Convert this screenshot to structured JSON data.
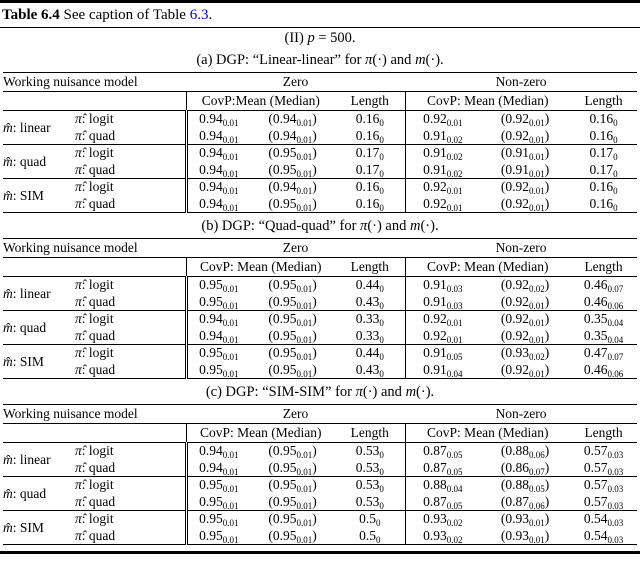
{
  "link_color": "#0000ee",
  "caption": {
    "bold": "Table 6.4",
    "text": "See caption of Table",
    "link": "6.3",
    "end": "."
  },
  "subtitle_segments": [
    [
      "(II) ",
      "r"
    ],
    [
      "p",
      "i"
    ],
    [
      " = 500.",
      "r"
    ]
  ],
  "header": [
    "Working nuisance model",
    "Zero",
    "Non-zero"
  ],
  "subtables": [
    {
      "caption_segments": [
        [
          "(a) DGP: “Linear-linear” for ",
          "r"
        ],
        [
          "π",
          "i"
        ],
        [
          "(·) and ",
          "r"
        ],
        [
          "m",
          "i"
        ],
        [
          "(·).",
          "r"
        ]
      ],
      "subheader": [
        "CovP:Mean (Median)",
        "Length",
        "CovP: Mean (Median)",
        "Length"
      ],
      "groups": [
        {
          "m_head": "m̂",
          "m_rest": ": linear",
          "rows": [
            {
              "pi_head": "π̂",
              "pi_rest": ": logit",
              "cells": [
                {
                  "v": "0.94",
                  "s": "0.01"
                },
                {
                  "v": "0.94",
                  "s": "0.01",
                  "p": true
                },
                {
                  "v": "0.16",
                  "s": "0"
                },
                {
                  "v": "0.92",
                  "s": "0.01"
                },
                {
                  "v": "0.92",
                  "s": "0.01",
                  "p": true
                },
                {
                  "v": "0.16",
                  "s": "0"
                }
              ]
            },
            {
              "pi_head": "π̂",
              "pi_rest": ": quad",
              "cells": [
                {
                  "v": "0.94",
                  "s": "0.01"
                },
                {
                  "v": "0.94",
                  "s": "0.01",
                  "p": true
                },
                {
                  "v": "0.16",
                  "s": "0"
                },
                {
                  "v": "0.91",
                  "s": "0.02"
                },
                {
                  "v": "0.92",
                  "s": "0.01",
                  "p": true
                },
                {
                  "v": "0.16",
                  "s": "0"
                }
              ]
            }
          ]
        },
        {
          "m_head": "m̂",
          "m_rest": ": quad",
          "rows": [
            {
              "pi_head": "π̂",
              "pi_rest": ": logit",
              "cells": [
                {
                  "v": "0.94",
                  "s": "0.01"
                },
                {
                  "v": "0.95",
                  "s": "0.01",
                  "p": true
                },
                {
                  "v": "0.17",
                  "s": "0"
                },
                {
                  "v": "0.91",
                  "s": "0.02"
                },
                {
                  "v": "0.91",
                  "s": "0.01",
                  "p": true
                },
                {
                  "v": "0.17",
                  "s": "0"
                }
              ]
            },
            {
              "pi_head": "π̂",
              "pi_rest": ": quad",
              "cells": [
                {
                  "v": "0.94",
                  "s": "0.01"
                },
                {
                  "v": "0.95",
                  "s": "0.01",
                  "p": true
                },
                {
                  "v": "0.17",
                  "s": "0"
                },
                {
                  "v": "0.91",
                  "s": "0.02"
                },
                {
                  "v": "0.91",
                  "s": "0.01",
                  "p": true
                },
                {
                  "v": "0.17",
                  "s": "0"
                }
              ]
            }
          ]
        },
        {
          "m_head": "m̂",
          "m_rest": ": SIM",
          "rows": [
            {
              "pi_head": "π̂",
              "pi_rest": ": logit",
              "cells": [
                {
                  "v": "0.94",
                  "s": "0.01"
                },
                {
                  "v": "0.94",
                  "s": "0.01",
                  "p": true
                },
                {
                  "v": "0.16",
                  "s": "0"
                },
                {
                  "v": "0.92",
                  "s": "0.01"
                },
                {
                  "v": "0.92",
                  "s": "0.01",
                  "p": true
                },
                {
                  "v": "0.16",
                  "s": "0"
                }
              ]
            },
            {
              "pi_head": "π̂",
              "pi_rest": ": quad",
              "cells": [
                {
                  "v": "0.94",
                  "s": "0.01"
                },
                {
                  "v": "0.95",
                  "s": "0.01",
                  "p": true
                },
                {
                  "v": "0.16",
                  "s": "0"
                },
                {
                  "v": "0.92",
                  "s": "0.01"
                },
                {
                  "v": "0.92",
                  "s": "0.01",
                  "p": true
                },
                {
                  "v": "0.16",
                  "s": "0"
                }
              ]
            }
          ]
        }
      ]
    },
    {
      "caption_segments": [
        [
          "(b) DGP: “Quad-quad” for ",
          "r"
        ],
        [
          "π",
          "i"
        ],
        [
          "(·) and ",
          "r"
        ],
        [
          "m",
          "i"
        ],
        [
          "(·).",
          "r"
        ]
      ],
      "subheader": [
        "CovP: Mean (Median)",
        "Length",
        "CovP: Mean (Median)",
        "Length"
      ],
      "groups": [
        {
          "m_head": "m̂",
          "m_rest": ": linear",
          "rows": [
            {
              "pi_head": "π̂",
              "pi_rest": ": logit",
              "cells": [
                {
                  "v": "0.95",
                  "s": "0.01"
                },
                {
                  "v": "0.95",
                  "s": "0.01",
                  "p": true
                },
                {
                  "v": "0.44",
                  "s": "0"
                },
                {
                  "v": "0.91",
                  "s": "0.03"
                },
                {
                  "v": "0.92",
                  "s": "0.02",
                  "p": true
                },
                {
                  "v": "0.46",
                  "s": "0.07"
                }
              ]
            },
            {
              "pi_head": "π̂",
              "pi_rest": ": quad",
              "cells": [
                {
                  "v": "0.95",
                  "s": "0.01"
                },
                {
                  "v": "0.95",
                  "s": "0.01",
                  "p": true
                },
                {
                  "v": "0.43",
                  "s": "0"
                },
                {
                  "v": "0.91",
                  "s": "0.03"
                },
                {
                  "v": "0.92",
                  "s": "0.01",
                  "p": true
                },
                {
                  "v": "0.46",
                  "s": "0.06"
                }
              ]
            }
          ]
        },
        {
          "m_head": "m̂",
          "m_rest": ": quad",
          "rows": [
            {
              "pi_head": "π̂",
              "pi_rest": ": logit",
              "cells": [
                {
                  "v": "0.94",
                  "s": "0.01"
                },
                {
                  "v": "0.95",
                  "s": "0.01",
                  "p": true
                },
                {
                  "v": "0.33",
                  "s": "0"
                },
                {
                  "v": "0.92",
                  "s": "0.01"
                },
                {
                  "v": "0.92",
                  "s": "0.01",
                  "p": true
                },
                {
                  "v": "0.35",
                  "s": "0.04"
                }
              ]
            },
            {
              "pi_head": "π̂",
              "pi_rest": ": quad",
              "cells": [
                {
                  "v": "0.94",
                  "s": "0.01"
                },
                {
                  "v": "0.95",
                  "s": "0.01",
                  "p": true
                },
                {
                  "v": "0.33",
                  "s": "0"
                },
                {
                  "v": "0.92",
                  "s": "0.01"
                },
                {
                  "v": "0.92",
                  "s": "0.01",
                  "p": true
                },
                {
                  "v": "0.35",
                  "s": "0.04"
                }
              ]
            }
          ]
        },
        {
          "m_head": "m̂",
          "m_rest": ": SIM",
          "rows": [
            {
              "pi_head": "π̂",
              "pi_rest": ": logit",
              "cells": [
                {
                  "v": "0.95",
                  "s": "0.01"
                },
                {
                  "v": "0.95",
                  "s": "0.01",
                  "p": true
                },
                {
                  "v": "0.44",
                  "s": "0"
                },
                {
                  "v": "0.91",
                  "s": "0.05"
                },
                {
                  "v": "0.93",
                  "s": "0.02",
                  "p": true
                },
                {
                  "v": "0.47",
                  "s": "0.07"
                }
              ]
            },
            {
              "pi_head": "π̂",
              "pi_rest": ": quad",
              "cells": [
                {
                  "v": "0.95",
                  "s": "0.01"
                },
                {
                  "v": "0.95",
                  "s": "0.01",
                  "p": true
                },
                {
                  "v": "0.43",
                  "s": "0"
                },
                {
                  "v": "0.91",
                  "s": "0.04"
                },
                {
                  "v": "0.92",
                  "s": "0.01",
                  "p": true
                },
                {
                  "v": "0.46",
                  "s": "0.06"
                }
              ]
            }
          ]
        }
      ]
    },
    {
      "caption_segments": [
        [
          "(c) DGP: “SIM-SIM” for ",
          "r"
        ],
        [
          "π",
          "i"
        ],
        [
          "(·) and ",
          "r"
        ],
        [
          "m",
          "i"
        ],
        [
          "(·).",
          "r"
        ]
      ],
      "subheader": [
        "CovP: Mean (Median)",
        "Length",
        "CovP: Mean (Median)",
        "Length"
      ],
      "groups": [
        {
          "m_head": "m̂",
          "m_rest": ": linear",
          "rows": [
            {
              "pi_head": "π̂",
              "pi_rest": ": logit",
              "cells": [
                {
                  "v": "0.94",
                  "s": "0.01"
                },
                {
                  "v": "0.95",
                  "s": "0.01",
                  "p": true
                },
                {
                  "v": "0.53",
                  "s": "0"
                },
                {
                  "v": "0.87",
                  "s": "0.05"
                },
                {
                  "v": "0.88",
                  "s": "0.06",
                  "p": true
                },
                {
                  "v": "0.57",
                  "s": "0.03"
                }
              ]
            },
            {
              "pi_head": "π̂",
              "pi_rest": ": quad",
              "cells": [
                {
                  "v": "0.94",
                  "s": "0.01"
                },
                {
                  "v": "0.95",
                  "s": "0.01",
                  "p": true
                },
                {
                  "v": "0.53",
                  "s": "0"
                },
                {
                  "v": "0.87",
                  "s": "0.05"
                },
                {
                  "v": "0.86",
                  "s": "0.07",
                  "p": true
                },
                {
                  "v": "0.57",
                  "s": "0.03"
                }
              ]
            }
          ]
        },
        {
          "m_head": "m̂",
          "m_rest": ": quad",
          "rows": [
            {
              "pi_head": "π̂",
              "pi_rest": ": logit",
              "cells": [
                {
                  "v": "0.95",
                  "s": "0.01"
                },
                {
                  "v": "0.95",
                  "s": "0.01",
                  "p": true
                },
                {
                  "v": "0.53",
                  "s": "0"
                },
                {
                  "v": "0.88",
                  "s": "0.04"
                },
                {
                  "v": "0.88",
                  "s": "0.05",
                  "p": true
                },
                {
                  "v": "0.57",
                  "s": "0.03"
                }
              ]
            },
            {
              "pi_head": "π̂",
              "pi_rest": ": quad",
              "cells": [
                {
                  "v": "0.95",
                  "s": "0.01"
                },
                {
                  "v": "0.95",
                  "s": "0.01",
                  "p": true
                },
                {
                  "v": "0.53",
                  "s": "0"
                },
                {
                  "v": "0.87",
                  "s": "0.05"
                },
                {
                  "v": "0.87",
                  "s": "0.06",
                  "p": true
                },
                {
                  "v": "0.57",
                  "s": "0.03"
                }
              ]
            }
          ]
        },
        {
          "m_head": "m̂",
          "m_rest": ": SIM",
          "rows": [
            {
              "pi_head": "π̂",
              "pi_rest": ": logit",
              "cells": [
                {
                  "v": "0.95",
                  "s": "0.01"
                },
                {
                  "v": "0.95",
                  "s": "0.01",
                  "p": true
                },
                {
                  "v": "0.5",
                  "s": "0"
                },
                {
                  "v": "0.93",
                  "s": "0.02"
                },
                {
                  "v": "0.93",
                  "s": "0.01",
                  "p": true
                },
                {
                  "v": "0.54",
                  "s": "0.03"
                }
              ]
            },
            {
              "pi_head": "π̂",
              "pi_rest": ": quad",
              "cells": [
                {
                  "v": "0.95",
                  "s": "0.01"
                },
                {
                  "v": "0.95",
                  "s": "0.01",
                  "p": true
                },
                {
                  "v": "0.5",
                  "s": "0"
                },
                {
                  "v": "0.93",
                  "s": "0.02"
                },
                {
                  "v": "0.93",
                  "s": "0.01",
                  "p": true
                },
                {
                  "v": "0.54",
                  "s": "0.03"
                }
              ]
            }
          ]
        }
      ]
    }
  ]
}
